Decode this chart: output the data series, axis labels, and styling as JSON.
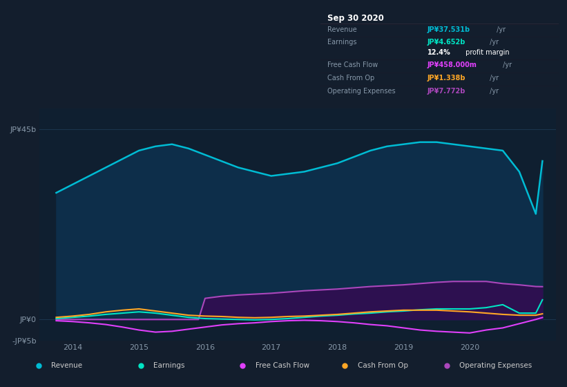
{
  "bg_color": "#131e2d",
  "chart_bg": "#0f1f30",
  "grid_color": "#1e3a55",
  "title_box": {
    "date": "Sep 30 2020",
    "rows": [
      {
        "label": "Revenue",
        "value": "JP¥37.531b",
        "suffix": " /yr",
        "value_color": "#00bcd4"
      },
      {
        "label": "Earnings",
        "value": "JP¥4.652b",
        "suffix": " /yr",
        "value_color": "#00e5c4"
      },
      {
        "label": "",
        "value": "12.4%",
        "suffix": " profit margin",
        "value_color": "#ffffff"
      },
      {
        "label": "Free Cash Flow",
        "value": "JP¥458.000m",
        "suffix": " /yr",
        "value_color": "#e040fb"
      },
      {
        "label": "Cash From Op",
        "value": "JP¥1.338b",
        "suffix": " /yr",
        "value_color": "#ffa726"
      },
      {
        "label": "Operating Expenses",
        "value": "JP¥7.772b",
        "suffix": " /yr",
        "value_color": "#ab47bc"
      }
    ]
  },
  "ylim": [
    -5000000000.0,
    50000000000.0
  ],
  "ylim_display": [
    -5000000000.0,
    47000000000.0
  ],
  "ytick_vals": [
    45000000000.0,
    0,
    -5000000000.0
  ],
  "ytick_labels": [
    "JP¥45b",
    "JP¥0",
    "-JP¥5b"
  ],
  "xlim_start": 2013.5,
  "xlim_end": 2021.3,
  "xtick_years": [
    2014,
    2015,
    2016,
    2017,
    2018,
    2019,
    2020
  ],
  "series": {
    "revenue": {
      "color": "#00bcd4",
      "fill_color": "#0d2e4a",
      "x": [
        2013.75,
        2014.0,
        2014.25,
        2014.5,
        2014.75,
        2015.0,
        2015.25,
        2015.5,
        2015.75,
        2016.0,
        2016.25,
        2016.5,
        2016.75,
        2017.0,
        2017.25,
        2017.5,
        2017.75,
        2018.0,
        2018.25,
        2018.5,
        2018.75,
        2019.0,
        2019.25,
        2019.5,
        2019.75,
        2020.0,
        2020.25,
        2020.5,
        2020.75,
        2021.0,
        2021.1
      ],
      "y": [
        30000000000.0,
        32000000000.0,
        34000000000.0,
        36000000000.0,
        38000000000.0,
        40000000000.0,
        41000000000.0,
        41500000000.0,
        40500000000.0,
        39000000000.0,
        37500000000.0,
        36000000000.0,
        35000000000.0,
        34000000000.0,
        34500000000.0,
        35000000000.0,
        36000000000.0,
        37000000000.0,
        38500000000.0,
        40000000000.0,
        41000000000.0,
        41500000000.0,
        42000000000.0,
        42000000000.0,
        41500000000.0,
        41000000000.0,
        40500000000.0,
        40000000000.0,
        35000000000.0,
        25000000000.0,
        37531000000.0
      ]
    },
    "earnings": {
      "color": "#00e5c4",
      "x": [
        2013.75,
        2014.0,
        2014.25,
        2014.5,
        2014.75,
        2015.0,
        2015.25,
        2015.5,
        2015.75,
        2016.0,
        2016.25,
        2016.5,
        2016.75,
        2017.0,
        2017.25,
        2017.5,
        2017.75,
        2018.0,
        2018.25,
        2018.5,
        2018.75,
        2019.0,
        2019.25,
        2019.5,
        2019.75,
        2020.0,
        2020.25,
        2020.5,
        2020.75,
        2021.0,
        2021.1
      ],
      "y": [
        200000000.0,
        500000000.0,
        800000000.0,
        1200000000.0,
        1500000000.0,
        1800000000.0,
        1500000000.0,
        1000000000.0,
        500000000.0,
        200000000.0,
        100000000.0,
        0.0,
        -100000000.0,
        0.0,
        200000000.0,
        500000000.0,
        800000000.0,
        1000000000.0,
        1300000000.0,
        1500000000.0,
        1800000000.0,
        2000000000.0,
        2300000000.0,
        2500000000.0,
        2500000000.0,
        2500000000.0,
        2800000000.0,
        3500000000.0,
        1500000000.0,
        1500000000.0,
        4652000000.0
      ]
    },
    "free_cash_flow": {
      "color": "#e040fb",
      "x": [
        2013.75,
        2014.0,
        2014.25,
        2014.5,
        2014.75,
        2015.0,
        2015.25,
        2015.5,
        2015.75,
        2016.0,
        2016.25,
        2016.5,
        2016.75,
        2017.0,
        2017.25,
        2017.5,
        2017.75,
        2018.0,
        2018.25,
        2018.5,
        2018.75,
        2019.0,
        2019.25,
        2019.5,
        2019.75,
        2020.0,
        2020.25,
        2020.5,
        2020.75,
        2021.0,
        2021.1
      ],
      "y": [
        -300000000.0,
        -500000000.0,
        -800000000.0,
        -1200000000.0,
        -1800000000.0,
        -2500000000.0,
        -3000000000.0,
        -2800000000.0,
        -2300000000.0,
        -1800000000.0,
        -1300000000.0,
        -1000000000.0,
        -800000000.0,
        -500000000.0,
        -300000000.0,
        -200000000.0,
        -300000000.0,
        -500000000.0,
        -800000000.0,
        -1200000000.0,
        -1500000000.0,
        -2000000000.0,
        -2500000000.0,
        -2800000000.0,
        -3000000000.0,
        -3200000000.0,
        -2500000000.0,
        -2000000000.0,
        -1000000000.0,
        0.0,
        458000000.0
      ]
    },
    "cash_from_op": {
      "color": "#ffa726",
      "x": [
        2013.75,
        2014.0,
        2014.25,
        2014.5,
        2014.75,
        2015.0,
        2015.25,
        2015.5,
        2015.75,
        2016.0,
        2016.25,
        2016.5,
        2016.75,
        2017.0,
        2017.25,
        2017.5,
        2017.75,
        2018.0,
        2018.25,
        2018.5,
        2018.75,
        2019.0,
        2019.25,
        2019.5,
        2019.75,
        2020.0,
        2020.25,
        2020.5,
        2020.75,
        2021.0,
        2021.1
      ],
      "y": [
        500000000.0,
        800000000.0,
        1200000000.0,
        1800000000.0,
        2200000000.0,
        2500000000.0,
        2000000000.0,
        1500000000.0,
        1000000000.0,
        800000000.0,
        700000000.0,
        500000000.0,
        400000000.0,
        500000000.0,
        700000000.0,
        800000000.0,
        1000000000.0,
        1200000000.0,
        1500000000.0,
        1800000000.0,
        2000000000.0,
        2200000000.0,
        2200000000.0,
        2200000000.0,
        2000000000.0,
        1800000000.0,
        1500000000.0,
        1200000000.0,
        1000000000.0,
        1000000000.0,
        1338000000.0
      ]
    },
    "operating_expenses": {
      "color": "#ab47bc",
      "fill_color": "#2d1050",
      "x": [
        2013.75,
        2014.0,
        2014.25,
        2014.5,
        2014.75,
        2015.0,
        2015.25,
        2015.5,
        2015.75,
        2015.9,
        2016.0,
        2016.25,
        2016.5,
        2016.75,
        2017.0,
        2017.25,
        2017.5,
        2017.75,
        2018.0,
        2018.25,
        2018.5,
        2018.75,
        2019.0,
        2019.25,
        2019.5,
        2019.75,
        2020.0,
        2020.25,
        2020.5,
        2020.75,
        2021.0,
        2021.1
      ],
      "y": [
        0,
        0,
        0,
        0,
        0,
        0,
        0,
        0,
        0,
        0,
        5000000000.0,
        5500000000.0,
        5800000000.0,
        6000000000.0,
        6200000000.0,
        6500000000.0,
        6800000000.0,
        7000000000.0,
        7200000000.0,
        7500000000.0,
        7800000000.0,
        8000000000.0,
        8200000000.0,
        8500000000.0,
        8800000000.0,
        9000000000.0,
        9000000000.0,
        9000000000.0,
        8500000000.0,
        8200000000.0,
        7800000000.0,
        7772000000.0
      ]
    }
  },
  "legend": [
    {
      "label": "Revenue",
      "color": "#00bcd4"
    },
    {
      "label": "Earnings",
      "color": "#00e5c4"
    },
    {
      "label": "Free Cash Flow",
      "color": "#e040fb"
    },
    {
      "label": "Cash From Op",
      "color": "#ffa726"
    },
    {
      "label": "Operating Expenses",
      "color": "#ab47bc"
    }
  ]
}
